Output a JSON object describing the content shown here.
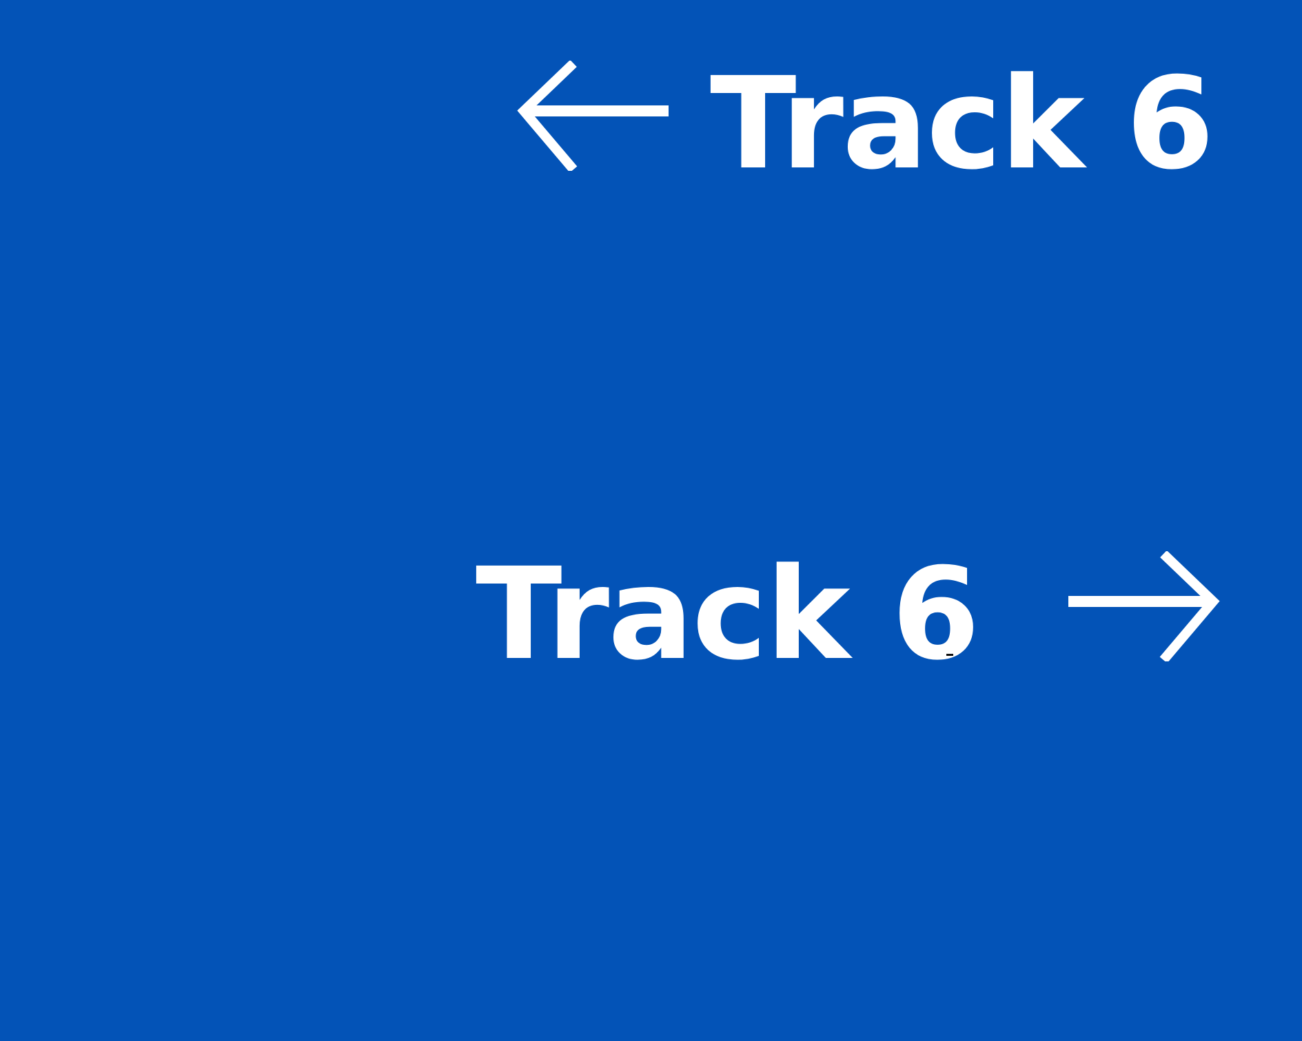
{
  "sign": {
    "background_color": "#0353B7",
    "text_color": "#FFFFFF",
    "directions": [
      {
        "label": "Track 6",
        "arrow": "arrow-left-icon"
      },
      {
        "label": "Track 6",
        "arrow": "arrow-right-icon"
      }
    ]
  }
}
